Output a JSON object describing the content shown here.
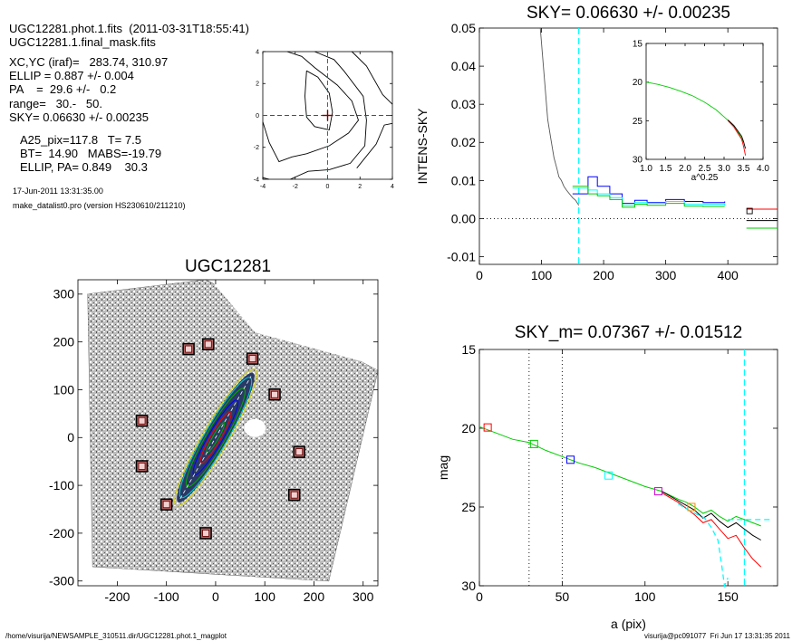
{
  "header": {
    "line1": "UGC12281.phot.1.fits  (2011-03-31T18:55:41)",
    "line2": "UGC12281.1.final_mask.fits",
    "xcyc": "XC,YC (iraf)=   283.74, 310.97",
    "ellip": "ELLIP = 0.887 +/- 0.004",
    "pa": "PA    =  29.6 +/-   0.2",
    "range": "range=   30.-   50.",
    "sky": "SKY= 0.06630 +/- 0.00235",
    "a25": "A25_pix=117.8   T= 7.5",
    "bt": "BT=  14.90   MABS=-19.79",
    "ellip_pa": "ELLIP, PA= 0.849    30.3",
    "date": "17-Jun-2011 13:31:35.00",
    "prog": "make_datalist0.pro (version HS230610/211210)"
  },
  "footer": {
    "left": "/home/visurija/NEWSAMPLE_310511.dir/UGC12281.phot.1_magplot",
    "right": "visurija@pc091077  Fri Jun 17 13:31:35 2011"
  },
  "colors": {
    "cyan": "#00ffff",
    "blue": "#0000ff",
    "green": "#00cc00",
    "red": "#ff0000",
    "darkred": "#800000",
    "gray": "#555555"
  },
  "chart_data": [
    {
      "type": "line",
      "panel": "contour",
      "xlim": [
        -4,
        4
      ],
      "ylim": [
        -4,
        4
      ],
      "xticks": [
        -4,
        -2,
        0,
        2,
        4
      ],
      "yticks": [
        -4,
        -2,
        0,
        2,
        4
      ],
      "center": [
        0,
        0
      ],
      "contours": [
        [
          [
            -1.3,
            2.8
          ],
          [
            -0.6,
            2.4
          ],
          [
            0.1,
            1.4
          ],
          [
            0.3,
            0.2
          ],
          [
            0.1,
            -0.9
          ],
          [
            -0.8,
            -0.7
          ],
          [
            -1.3,
            -0.1
          ],
          [
            -1.4,
            1.2
          ],
          [
            -1.3,
            2.8
          ]
        ],
        [
          [
            -2.5,
            4.0
          ],
          [
            -1.6,
            3.7
          ],
          [
            -0.8,
            3.0
          ],
          [
            0.6,
            1.9
          ],
          [
            1.5,
            0.9
          ],
          [
            1.9,
            -0.3
          ],
          [
            1.3,
            -1.1
          ],
          [
            0.1,
            -1.9
          ],
          [
            -1.3,
            -2.4
          ],
          [
            -2.2,
            -2.6
          ],
          [
            -3.0,
            -2.9
          ],
          [
            -3.6,
            -1.7
          ],
          [
            -4.0,
            -0.4
          ]
        ],
        [
          [
            -0.8,
            4.0
          ],
          [
            0.4,
            3.5
          ],
          [
            1.0,
            2.8
          ],
          [
            2.2,
            1.2
          ],
          [
            2.4,
            -0.3
          ],
          [
            2.3,
            -1.9
          ],
          [
            1.4,
            -3.0
          ],
          [
            0.1,
            -3.4
          ],
          [
            -1.2,
            -3.5
          ],
          [
            -2.3,
            -4.0
          ]
        ],
        [
          [
            1.5,
            4.0
          ],
          [
            2.4,
            3.1
          ],
          [
            3.4,
            1.3
          ],
          [
            4.0,
            0.7
          ]
        ],
        [
          [
            1.8,
            -3.3
          ],
          [
            3.0,
            -1.8
          ],
          [
            3.5,
            -0.6
          ],
          [
            4.0,
            -0.5
          ]
        ],
        [
          [
            -4.0,
            -3.9
          ],
          [
            -3.6,
            -4.0
          ]
        ]
      ]
    },
    {
      "type": "line",
      "panel": "sky",
      "title": "SKY= 0.06630 +/- 0.00235",
      "ylabel": "INTENS-SKY",
      "xlim": [
        0,
        480
      ],
      "ylim": [
        -0.012,
        0.05
      ],
      "xticks": [
        0,
        100,
        200,
        300,
        400
      ],
      "yticks": [
        -0.01,
        0.0,
        0.01,
        0.02,
        0.03,
        0.04,
        0.05
      ],
      "ytick_labels": [
        "-0.01",
        "0.00",
        "0.01",
        "0.02",
        "0.03",
        "0.04",
        "0.05"
      ],
      "sky_radius": 160,
      "series": [
        {
          "color": "gray",
          "x": [
            98,
            105,
            110,
            115,
            120,
            125,
            128,
            132,
            136,
            140,
            145,
            150,
            155,
            160
          ],
          "y": [
            0.05,
            0.036,
            0.026,
            0.021,
            0.016,
            0.013,
            0.011,
            0.01,
            0.0085,
            0.0075,
            0.0065,
            0.0055,
            0.0048,
            0.0035
          ]
        },
        {
          "color": "blue",
          "x": [
            150,
            175,
            190,
            210,
            230,
            250,
            270,
            300,
            330,
            360,
            395
          ],
          "y": [
            0.0065,
            0.011,
            0.0085,
            0.0065,
            0.004,
            0.0048,
            0.0042,
            0.005,
            0.0045,
            0.0042,
            0.0045
          ]
        },
        {
          "color": "cyan",
          "x": [
            150,
            175,
            190,
            210,
            230,
            250,
            270,
            300,
            330,
            360,
            395
          ],
          "y": [
            0.008,
            0.0075,
            0.0065,
            0.0055,
            0.0035,
            0.0042,
            0.004,
            0.0045,
            0.0038,
            0.0038,
            0.0035
          ]
        },
        {
          "color": "green",
          "x": [
            150,
            175,
            190,
            210,
            230,
            250,
            270,
            300,
            330,
            360,
            395
          ],
          "y": [
            0.0085,
            0.0065,
            0.006,
            0.005,
            0.003,
            0.0038,
            0.0035,
            0.004,
            0.0033,
            0.0032,
            0.0032
          ]
        },
        {
          "color": "red",
          "x": [
            430,
            480
          ],
          "y": [
            0.0025,
            0.0025
          ]
        },
        {
          "color": "black",
          "x": [
            430,
            480
          ],
          "y": [
            -0.0005,
            -0.0005
          ]
        },
        {
          "color": "green",
          "x": [
            430,
            480
          ],
          "y": [
            -0.0025,
            -0.0025
          ]
        }
      ],
      "square": [
        435,
        0.002
      ],
      "inset": {
        "xlabel": "a^0.25",
        "xlim": [
          1.0,
          4.0
        ],
        "ylim": [
          15,
          30
        ],
        "xticks": [
          1.0,
          1.5,
          2.0,
          2.5,
          3.0,
          3.5,
          4.0
        ],
        "xtick_labels": [
          "1.0",
          "1.5",
          "2.0",
          "2.5",
          "3.0",
          "3.5",
          "4.0"
        ],
        "yticks": [
          15,
          20,
          25,
          30
        ],
        "series": [
          {
            "color": "green",
            "x": [
              1.0,
              1.3,
              1.6,
              1.9,
              2.2,
              2.5,
              2.8,
              3.0,
              3.15,
              3.3,
              3.4,
              3.5
            ],
            "y": [
              20.0,
              20.3,
              20.7,
              21.2,
              21.8,
              22.6,
              23.6,
              24.5,
              25.2,
              26.0,
              26.8,
              27.8
            ]
          },
          {
            "color": "red",
            "x": [
              3.1,
              3.25,
              3.35,
              3.45,
              3.5,
              3.55
            ],
            "y": [
              25.0,
              25.8,
              26.6,
              27.4,
              28.3,
              29.5
            ]
          },
          {
            "color": "black",
            "x": [
              3.1,
              3.25,
              3.35,
              3.45,
              3.5,
              3.55
            ],
            "y": [
              24.9,
              25.6,
              26.3,
              27.0,
              27.7,
              28.6
            ]
          }
        ]
      }
    },
    {
      "type": "scatter",
      "panel": "image",
      "title": "UGC12281",
      "xlim": [
        -280,
        330
      ],
      "ylim": [
        -310,
        330
      ],
      "xticks": [
        -200,
        -100,
        0,
        100,
        200,
        300
      ],
      "yticks": [
        -300,
        -200,
        -100,
        0,
        100,
        200,
        300
      ],
      "ytick_labels": [
        "-300",
        "-200",
        "-100",
        "0",
        "100",
        "200",
        "300"
      ],
      "field_corners": [
        [
          -20,
          330
        ],
        [
          330,
          140
        ],
        [
          230,
          -300
        ],
        [
          -250,
          -270
        ],
        [
          -260,
          300
        ]
      ],
      "mask_band": [
        [
          -10,
          330
        ],
        [
          330,
          310
        ],
        [
          330,
          150
        ],
        [
          80,
          220
        ]
      ],
      "galaxy": {
        "center": [
          0,
          0
        ],
        "semi_major": 160,
        "semi_minor": 22,
        "pa_deg": 30
      },
      "ellipses": [
        {
          "scale": 1.0,
          "color": "#d4d400"
        },
        {
          "scale": 0.88,
          "color": "#00cccc"
        },
        {
          "scale": 0.72,
          "color": "#00aa00"
        },
        {
          "scale": 0.55,
          "color": "#0000ff"
        },
        {
          "scale": 0.38,
          "color": "#ff0000"
        },
        {
          "scale": 0.22,
          "color": "#00aa00"
        }
      ],
      "squares": [
        [
          -15,
          195
        ],
        [
          -55,
          185
        ],
        [
          75,
          165
        ],
        [
          120,
          90
        ],
        [
          -150,
          35
        ],
        [
          170,
          -30
        ],
        [
          -150,
          -60
        ],
        [
          160,
          -120
        ],
        [
          -100,
          -140
        ],
        [
          -20,
          -200
        ]
      ]
    },
    {
      "type": "line",
      "panel": "mag",
      "title": "SKY_m=  0.07367 +/- 0.01512",
      "xlabel": "a (pix)",
      "ylabel": "mag",
      "xlim": [
        0,
        180
      ],
      "ylim": [
        15,
        30
      ],
      "xticks": [
        0,
        50,
        100,
        150
      ],
      "yticks": [
        15,
        20,
        25,
        30
      ],
      "vlines_dotted": [
        30,
        50
      ],
      "vline_dashed": 160,
      "series": [
        {
          "color": "green",
          "x": [
            0,
            10,
            20,
            30,
            40,
            50,
            60,
            70,
            80,
            90,
            100,
            110,
            120,
            125,
            130,
            135,
            140,
            145,
            150,
            155,
            160,
            165,
            170
          ],
          "y": [
            19.9,
            20.3,
            20.7,
            20.9,
            21.4,
            21.8,
            22.2,
            22.5,
            22.9,
            23.3,
            23.7,
            24.0,
            24.5,
            24.7,
            25.0,
            25.4,
            25.2,
            25.6,
            25.9,
            25.6,
            25.8,
            26.0,
            26.2
          ]
        },
        {
          "color": "black",
          "x": [
            110,
            120,
            125,
            130,
            135,
            140,
            145,
            150,
            155,
            160,
            165,
            170
          ],
          "y": [
            24.0,
            24.6,
            24.9,
            25.2,
            25.7,
            25.4,
            25.9,
            26.3,
            26.0,
            26.4,
            26.8,
            27.1
          ]
        },
        {
          "color": "red",
          "x": [
            110,
            120,
            125,
            130,
            135,
            140,
            145,
            150,
            155,
            160,
            165,
            170
          ],
          "y": [
            24.1,
            24.7,
            25.1,
            25.5,
            26.0,
            25.8,
            26.4,
            27.0,
            26.8,
            27.6,
            28.3,
            28.8
          ]
        },
        {
          "color": "cyan",
          "x": [
            120,
            128,
            136,
            140,
            144,
            146,
            148,
            150
          ],
          "y": [
            24.8,
            25.3,
            25.7,
            26.3,
            27.1,
            28.5,
            30.0,
            29.5
          ]
        },
        {
          "color": "cyan",
          "x": [
            150,
            176
          ],
          "y": [
            25.8,
            25.8
          ]
        }
      ],
      "squares": [
        {
          "x": 5,
          "y": 19.95,
          "color": "red"
        },
        {
          "x": 33,
          "y": 21.0,
          "color": "green"
        },
        {
          "x": 55,
          "y": 22.0,
          "color": "blue"
        },
        {
          "x": 78,
          "y": 23.0,
          "color": "cyan"
        },
        {
          "x": 108,
          "y": 24.0,
          "color": "#cc00cc"
        },
        {
          "x": 128,
          "y": 25.0,
          "color": "#ff8800"
        }
      ]
    }
  ]
}
